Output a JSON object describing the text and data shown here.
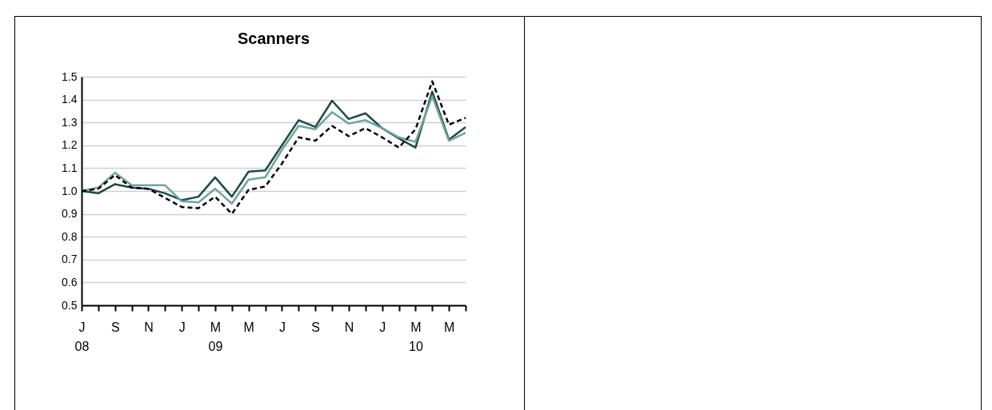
{
  "chart_data": {
    "type": "line",
    "title": "Scanners",
    "categories": [
      "J\n08",
      null,
      "S",
      null,
      "N",
      null,
      "J",
      null,
      "M\n09",
      null,
      "M",
      null,
      "J",
      null,
      "S",
      null,
      "N",
      null,
      "J",
      null,
      "M\n10",
      null,
      "M",
      null
    ],
    "series": [
      {
        "color": "#1d4a45",
        "values": [
          1.0,
          0.99,
          1.03,
          1.015,
          1.01,
          0.99,
          0.96,
          0.975,
          1.06,
          0.975,
          1.085,
          1.09,
          1.2,
          1.31,
          1.28,
          1.395,
          1.315,
          1.34,
          1.275,
          1.23,
          1.19,
          1.435,
          1.225,
          1.28
        ]
      },
      {
        "color": "#6fa3a0",
        "values": [
          1.0,
          1.015,
          1.08,
          1.025,
          1.025,
          1.025,
          0.955,
          0.95,
          1.01,
          0.945,
          1.05,
          1.06,
          1.18,
          1.285,
          1.27,
          1.345,
          1.295,
          1.31,
          1.275,
          1.235,
          1.215,
          1.415,
          1.22,
          1.255
        ]
      },
      {
        "color": "#000000",
        "line_style": "dashed",
        "values": [
          1.0,
          1.01,
          1.07,
          1.015,
          1.01,
          0.97,
          0.93,
          0.925,
          0.975,
          0.9,
          1.005,
          1.02,
          1.12,
          1.235,
          1.22,
          1.285,
          1.24,
          1.275,
          1.235,
          1.19,
          1.27,
          1.48,
          1.29,
          1.32
        ]
      }
    ],
    "ylim": [
      0.5,
      1.5
    ],
    "yticks": [
      0.5,
      0.6,
      0.7,
      0.8,
      0.9,
      {
        "value": 1,
        "label": "1.0"
      },
      1.1,
      1.2,
      1.3,
      1.4,
      1.5
    ],
    "grid": "y"
  }
}
